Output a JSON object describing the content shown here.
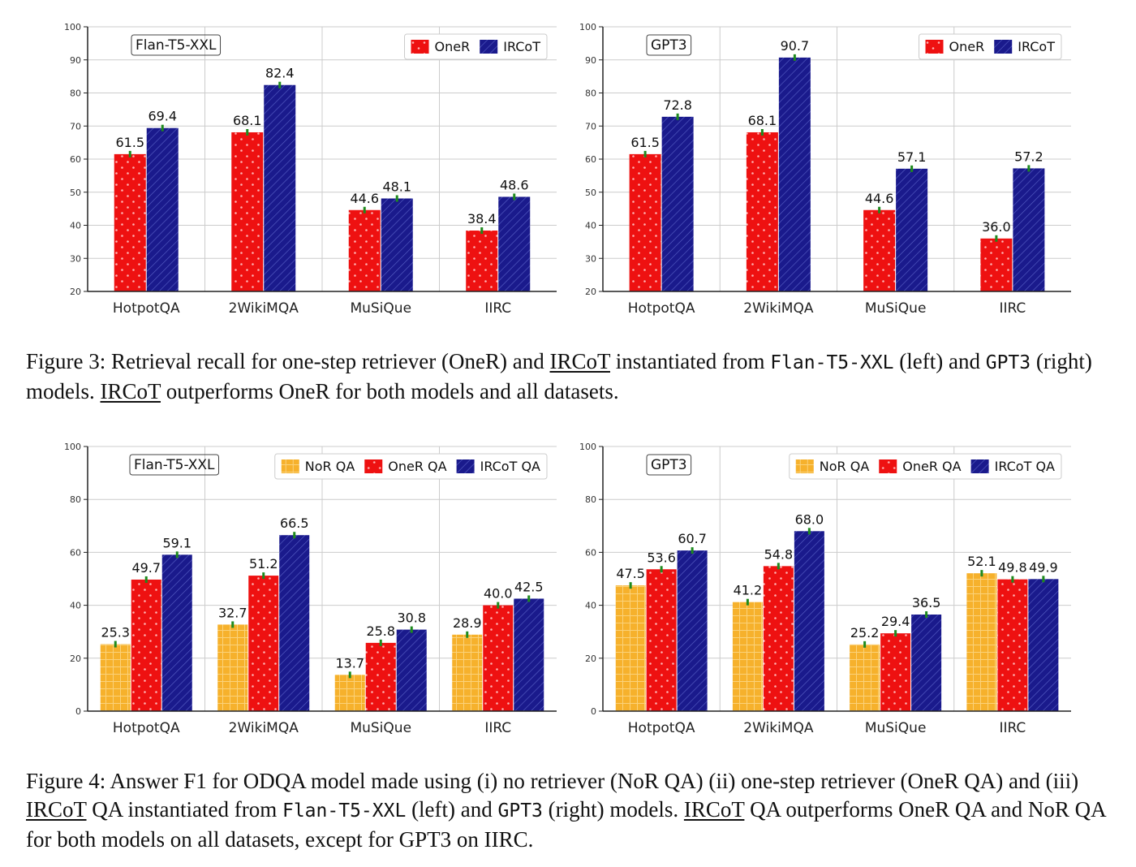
{
  "colors": {
    "oner": "#ee1111",
    "ircot": "#1a1a8c",
    "nor": "#f6b12c",
    "err": "#1e8a1e",
    "grid": "#cccccc"
  },
  "chart_data": [
    {
      "type": "bar",
      "title": "Flan-T5-XXL",
      "categories": [
        "HotpotQA",
        "2WikiMQA",
        "MuSiQue",
        "IIRC"
      ],
      "ylim": [
        20,
        100
      ],
      "yticks": [
        20,
        30,
        40,
        50,
        60,
        70,
        80,
        90,
        100
      ],
      "legend": "top-right",
      "series": [
        {
          "name": "OneR",
          "key": "oner",
          "values": [
            61.5,
            68.1,
            44.6,
            38.4
          ],
          "labels": [
            "61.5",
            "68.1",
            "44.6",
            "38.4"
          ]
        },
        {
          "name": "IRCoT",
          "key": "ircot",
          "values": [
            69.4,
            82.4,
            48.1,
            48.6
          ],
          "labels": [
            "69.4",
            "82.4",
            "48.1",
            "48.6"
          ]
        }
      ]
    },
    {
      "type": "bar",
      "title": "GPT3",
      "categories": [
        "HotpotQA",
        "2WikiMQA",
        "MuSiQue",
        "IIRC"
      ],
      "ylim": [
        20,
        100
      ],
      "yticks": [
        20,
        30,
        40,
        50,
        60,
        70,
        80,
        90,
        100
      ],
      "legend": "top-right",
      "series": [
        {
          "name": "OneR",
          "key": "oner",
          "values": [
            61.5,
            68.1,
            44.6,
            36.0
          ],
          "labels": [
            "61.5",
            "68.1",
            "44.6",
            "36.0"
          ]
        },
        {
          "name": "IRCoT",
          "key": "ircot",
          "values": [
            72.8,
            90.7,
            57.1,
            57.2
          ],
          "labels": [
            "72.8",
            "90.7",
            "57.1",
            "57.2"
          ]
        }
      ]
    },
    {
      "type": "bar",
      "title": "Flan-T5-XXL",
      "categories": [
        "HotpotQA",
        "2WikiMQA",
        "MuSiQue",
        "IIRC"
      ],
      "ylim": [
        0,
        100
      ],
      "yticks": [
        0,
        20,
        40,
        60,
        80,
        100
      ],
      "legend": "top-right",
      "series": [
        {
          "name": "NoR QA",
          "key": "nor",
          "values": [
            25.3,
            32.7,
            13.7,
            28.9
          ],
          "labels": [
            "25.3",
            "32.7",
            "13.7",
            "28.9"
          ]
        },
        {
          "name": "OneR QA",
          "key": "oner",
          "values": [
            49.7,
            51.2,
            25.8,
            40.0
          ],
          "labels": [
            "49.7",
            "51.2",
            "25.8",
            "40.0"
          ]
        },
        {
          "name": "IRCoT QA",
          "key": "ircot",
          "values": [
            59.1,
            66.5,
            30.8,
            42.5
          ],
          "labels": [
            "59.1",
            "66.5",
            "30.8",
            "42.5"
          ]
        }
      ]
    },
    {
      "type": "bar",
      "title": "GPT3",
      "categories": [
        "HotpotQA",
        "2WikiMQA",
        "MuSiQue",
        "IIRC"
      ],
      "ylim": [
        0,
        100
      ],
      "yticks": [
        0,
        20,
        40,
        60,
        80,
        100
      ],
      "legend": "top-right",
      "series": [
        {
          "name": "NoR QA",
          "key": "nor",
          "values": [
            47.5,
            41.2,
            25.2,
            52.1
          ],
          "labels": [
            "47.5",
            "41.2",
            "25.2",
            "52.1"
          ]
        },
        {
          "name": "OneR QA",
          "key": "oner",
          "values": [
            53.6,
            54.8,
            29.4,
            49.8
          ],
          "labels": [
            "53.6",
            "54.8",
            "29.4",
            "49.8"
          ]
        },
        {
          "name": "IRCoT QA",
          "key": "ircot",
          "values": [
            60.7,
            68.0,
            36.5,
            49.9
          ],
          "labels": [
            "60.7",
            "68.0",
            "36.5",
            "49.9"
          ]
        }
      ]
    }
  ],
  "captions": {
    "fig3": {
      "a": "Figure 3: Retrieval recall for one-step retriever (OneR) and ",
      "b": "IRCoT",
      "c": " instantiated from ",
      "d": "Flan-T5-XXL",
      "e": " (left) and ",
      "f": "GPT3",
      "g": " (right) models. ",
      "h": "IRCoT",
      "i": " outperforms OneR for both models and all datasets."
    },
    "fig4": {
      "a": "Figure 4: Answer F1 for ODQA model made using (i) no retriever (NoR QA) (ii) one-step retriever (OneR QA) and (iii) ",
      "b": "IRCoT",
      "c": " QA instantiated from ",
      "d": "Flan-T5-XXL",
      "e": " (left) and ",
      "f": "GPT3",
      "g": " (right) models. ",
      "h": "IRCoT",
      "i": " QA outperforms OneR QA and NoR QA for both models on all datasets, except for GPT3 on IIRC."
    }
  }
}
